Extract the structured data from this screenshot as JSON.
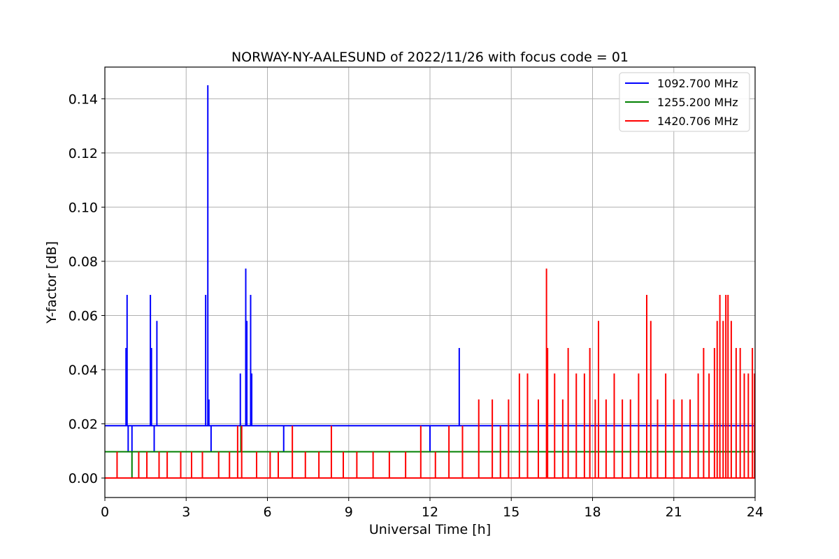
{
  "chart_data": {
    "type": "line",
    "title": "NORWAY-NY-AALESUND of 2022/11/26 with focus code = 01",
    "xlabel": "Universal Time [h]",
    "ylabel": "Y-factor [dB]",
    "xlim": [
      0,
      24
    ],
    "ylim": [
      -0.0072,
      0.1517
    ],
    "x_ticks": [
      "0",
      "3",
      "6",
      "9",
      "12",
      "15",
      "18",
      "21",
      "24"
    ],
    "x_tick_values": [
      0,
      3,
      6,
      9,
      12,
      15,
      18,
      21,
      24
    ],
    "y_ticks": [
      "0.00",
      "0.02",
      "0.04",
      "0.06",
      "0.08",
      "0.10",
      "0.12",
      "0.14"
    ],
    "y_tick_values": [
      0.0,
      0.02,
      0.04,
      0.06,
      0.08,
      0.1,
      0.12,
      0.14
    ],
    "grid": true,
    "legend_position": "top-right",
    "series": [
      {
        "name": "1092.700 MHz",
        "color": "#0000ff",
        "baseline": 0.0193,
        "spikes": [
          {
            "x": 0.78,
            "y": 0.048
          },
          {
            "x": 0.82,
            "y": 0.0676
          },
          {
            "x": 0.86,
            "y": 0.0097
          },
          {
            "x": 1.0,
            "y": 0.0097
          },
          {
            "x": 1.68,
            "y": 0.0676
          },
          {
            "x": 1.72,
            "y": 0.048
          },
          {
            "x": 1.82,
            "y": 0.0097
          },
          {
            "x": 1.92,
            "y": 0.058
          },
          {
            "x": 3.72,
            "y": 0.0676
          },
          {
            "x": 3.8,
            "y": 0.145
          },
          {
            "x": 3.84,
            "y": 0.029
          },
          {
            "x": 3.92,
            "y": 0.0097
          },
          {
            "x": 5.0,
            "y": 0.0386
          },
          {
            "x": 5.2,
            "y": 0.0773
          },
          {
            "x": 5.24,
            "y": 0.058
          },
          {
            "x": 5.38,
            "y": 0.0676
          },
          {
            "x": 5.42,
            "y": 0.0386
          },
          {
            "x": 6.6,
            "y": 0.0097
          },
          {
            "x": 12.0,
            "y": 0.0097
          },
          {
            "x": 13.08,
            "y": 0.048
          }
        ]
      },
      {
        "name": "1255.200 MHz",
        "color": "#008000",
        "baseline": 0.0097,
        "spikes": [
          {
            "x": 1.0,
            "y": 0.0
          },
          {
            "x": 5.02,
            "y": 0.0193
          }
        ]
      },
      {
        "name": "1420.706 MHz",
        "color": "#ff0000",
        "baseline": 0.0,
        "spikes": [
          {
            "x": 0.45,
            "y": 0.0097
          },
          {
            "x": 1.25,
            "y": 0.0097
          },
          {
            "x": 1.55,
            "y": 0.0097
          },
          {
            "x": 2.0,
            "y": 0.0097
          },
          {
            "x": 2.3,
            "y": 0.0097
          },
          {
            "x": 2.8,
            "y": 0.0097
          },
          {
            "x": 3.2,
            "y": 0.0097
          },
          {
            "x": 3.6,
            "y": 0.0097
          },
          {
            "x": 4.2,
            "y": 0.0097
          },
          {
            "x": 4.6,
            "y": 0.0097
          },
          {
            "x": 4.9,
            "y": 0.0193
          },
          {
            "x": 5.05,
            "y": 0.0193
          },
          {
            "x": 5.6,
            "y": 0.0097
          },
          {
            "x": 6.1,
            "y": 0.0097
          },
          {
            "x": 6.4,
            "y": 0.0097
          },
          {
            "x": 6.92,
            "y": 0.0193
          },
          {
            "x": 7.4,
            "y": 0.0097
          },
          {
            "x": 7.9,
            "y": 0.0097
          },
          {
            "x": 8.36,
            "y": 0.0193
          },
          {
            "x": 8.8,
            "y": 0.0097
          },
          {
            "x": 9.3,
            "y": 0.0097
          },
          {
            "x": 9.9,
            "y": 0.0097
          },
          {
            "x": 10.5,
            "y": 0.0097
          },
          {
            "x": 11.1,
            "y": 0.0097
          },
          {
            "x": 11.66,
            "y": 0.0193
          },
          {
            "x": 12.2,
            "y": 0.0097
          },
          {
            "x": 12.7,
            "y": 0.0193
          },
          {
            "x": 13.2,
            "y": 0.0193
          },
          {
            "x": 13.8,
            "y": 0.029
          },
          {
            "x": 14.3,
            "y": 0.029
          },
          {
            "x": 14.6,
            "y": 0.0193
          },
          {
            "x": 14.9,
            "y": 0.029
          },
          {
            "x": 15.3,
            "y": 0.0386
          },
          {
            "x": 15.6,
            "y": 0.0386
          },
          {
            "x": 16.0,
            "y": 0.029
          },
          {
            "x": 16.3,
            "y": 0.0773
          },
          {
            "x": 16.34,
            "y": 0.048
          },
          {
            "x": 16.6,
            "y": 0.0386
          },
          {
            "x": 16.9,
            "y": 0.029
          },
          {
            "x": 17.1,
            "y": 0.048
          },
          {
            "x": 17.4,
            "y": 0.0386
          },
          {
            "x": 17.7,
            "y": 0.0386
          },
          {
            "x": 17.9,
            "y": 0.048
          },
          {
            "x": 18.1,
            "y": 0.029
          },
          {
            "x": 18.22,
            "y": 0.058
          },
          {
            "x": 18.5,
            "y": 0.029
          },
          {
            "x": 18.8,
            "y": 0.0386
          },
          {
            "x": 19.1,
            "y": 0.029
          },
          {
            "x": 19.4,
            "y": 0.029
          },
          {
            "x": 19.7,
            "y": 0.0386
          },
          {
            "x": 20.0,
            "y": 0.0676
          },
          {
            "x": 20.15,
            "y": 0.058
          },
          {
            "x": 20.4,
            "y": 0.029
          },
          {
            "x": 20.7,
            "y": 0.0386
          },
          {
            "x": 21.0,
            "y": 0.029
          },
          {
            "x": 21.3,
            "y": 0.029
          },
          {
            "x": 21.6,
            "y": 0.029
          },
          {
            "x": 21.9,
            "y": 0.0386
          },
          {
            "x": 22.1,
            "y": 0.048
          },
          {
            "x": 22.3,
            "y": 0.0386
          },
          {
            "x": 22.5,
            "y": 0.048
          },
          {
            "x": 22.6,
            "y": 0.058
          },
          {
            "x": 22.7,
            "y": 0.0676
          },
          {
            "x": 22.82,
            "y": 0.058
          },
          {
            "x": 22.92,
            "y": 0.0676
          },
          {
            "x": 23.0,
            "y": 0.0676
          },
          {
            "x": 23.12,
            "y": 0.058
          },
          {
            "x": 23.3,
            "y": 0.048
          },
          {
            "x": 23.45,
            "y": 0.048
          },
          {
            "x": 23.6,
            "y": 0.0386
          },
          {
            "x": 23.75,
            "y": 0.0386
          },
          {
            "x": 23.9,
            "y": 0.048
          },
          {
            "x": 23.98,
            "y": 0.0386
          }
        ]
      }
    ]
  }
}
